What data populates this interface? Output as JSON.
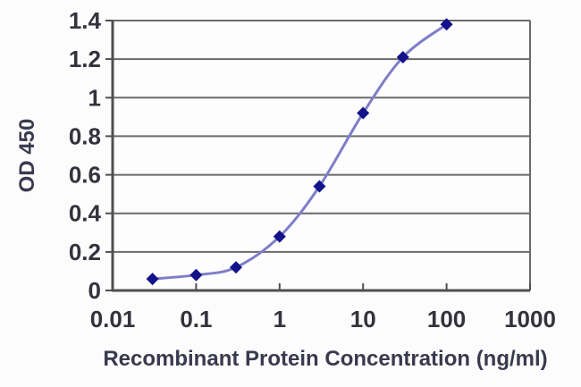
{
  "chart_data": {
    "type": "line",
    "title": "",
    "xlabel": "Recombinant Protein Concentration (ng/ml)",
    "ylabel": "OD 450",
    "xscale": "log",
    "xlim": [
      0.01,
      1000
    ],
    "ylim": [
      0,
      1.4
    ],
    "xticks": [
      0.01,
      0.1,
      1,
      10,
      100,
      1000
    ],
    "xtick_labels": [
      "0.01",
      "0.1",
      "1",
      "10",
      "100",
      "1000"
    ],
    "yticks": [
      0,
      0.2,
      0.4,
      0.6,
      0.8,
      1,
      1.2,
      1.4
    ],
    "ytick_labels": [
      "0",
      "0.2",
      "0.4",
      "0.6",
      "0.8",
      "1",
      "1.2",
      "1.4"
    ],
    "grid": "horizontal",
    "legend": "none",
    "series": [
      {
        "name": "OD 450",
        "x": [
          0.03,
          0.1,
          0.3,
          1,
          3,
          10,
          30,
          100
        ],
        "y": [
          0.06,
          0.08,
          0.12,
          0.28,
          0.54,
          0.92,
          1.21,
          1.38
        ],
        "marker": "diamond",
        "line_color": "#7e7ec7",
        "marker_color": "#12128a"
      }
    ]
  },
  "colors": {
    "background": "#fcfcfc",
    "plot_background": "#fdfdfd",
    "grid": "#6a6a6a",
    "axis": "#4f4f4f",
    "tick_label": "#33333d",
    "axis_label": "#3a3a4e"
  }
}
